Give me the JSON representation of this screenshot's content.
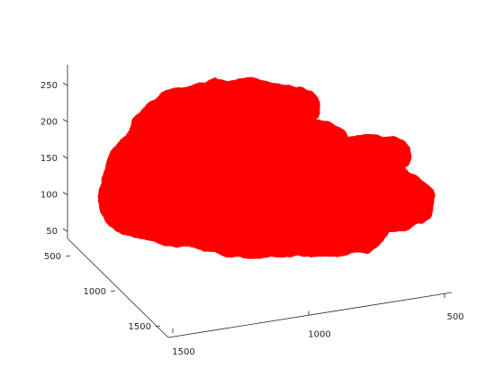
{
  "chart_data": {
    "type": "surface3d",
    "title": "",
    "xlabel": "",
    "ylabel": "",
    "zlabel": "",
    "surface_color": "#ff0000",
    "background_color": "#ffffff",
    "axis_color": "#262626",
    "grid": false,
    "box": false,
    "z_axis": {
      "ticks": [
        {
          "value": 50,
          "label": "50"
        },
        {
          "value": 100,
          "label": "100"
        },
        {
          "value": 150,
          "label": "150"
        },
        {
          "value": 200,
          "label": "200"
        },
        {
          "value": 250,
          "label": "250"
        }
      ]
    },
    "y_axis": {
      "ticks": [
        {
          "value": 500,
          "label": "500"
        },
        {
          "value": 1000,
          "label": "1000"
        },
        {
          "value": 1500,
          "label": "1500"
        }
      ]
    },
    "x_axis": {
      "ticks": [
        {
          "value": 500,
          "label": "500"
        },
        {
          "value": 1000,
          "label": "1000"
        },
        {
          "value": 1500,
          "label": "1500"
        }
      ]
    }
  }
}
